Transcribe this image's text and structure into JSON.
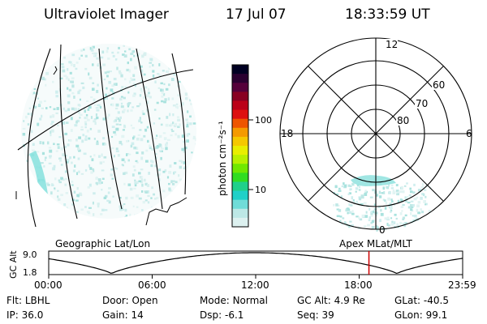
{
  "header": {
    "instrument": "Ultraviolet Imager",
    "date": "17 Jul 07",
    "time": "18:33:59 UT"
  },
  "colorbar": {
    "unit_label": "photon cm⁻²s⁻¹",
    "ticks": [
      "100",
      "10"
    ],
    "colors": [
      "#000022",
      "#2a0030",
      "#55003a",
      "#880022",
      "#bb0018",
      "#dd1010",
      "#ee5500",
      "#f59a00",
      "#f5c800",
      "#e8ee00",
      "#b8f000",
      "#70e800",
      "#30dd20",
      "#20d08a",
      "#20d0c8",
      "#70dcd8",
      "#bde8e6",
      "#ddf1f0"
    ]
  },
  "polar_plot": {
    "mlt_labels": {
      "top": "12",
      "left": "18",
      "right": "6",
      "bottom": "0"
    },
    "lat_labels": [
      "60",
      "70",
      "80"
    ]
  },
  "timeline": {
    "y_axis_label": "GC Alt",
    "y_ticks": [
      "9.0",
      "1.8"
    ],
    "left_caption": "Geographic Lat/Lon",
    "right_caption": "Apex MLat/MLT",
    "x_ticks": [
      "00:00",
      "06:00",
      "12:00",
      "18:00",
      "23:59"
    ],
    "current_time_fraction": 0.7736
  },
  "info_panel": {
    "row1": [
      {
        "label": "Flt:",
        "value": "LBHL"
      },
      {
        "label": "Door:",
        "value": "Open"
      },
      {
        "label": "Mode:",
        "value": "Normal"
      },
      {
        "label": "GC Alt:",
        "value": "4.9 Re"
      },
      {
        "label": "GLat:",
        "value": "-40.5"
      }
    ],
    "row2": [
      {
        "label": "IP:",
        "value": "36.0"
      },
      {
        "label": "Gain:",
        "value": "14"
      },
      {
        "label": "Dsp:",
        "value": "-6.1"
      },
      {
        "label": "Seq:",
        "value": "39"
      },
      {
        "label": "GLon:",
        "value": "99.1"
      }
    ]
  }
}
